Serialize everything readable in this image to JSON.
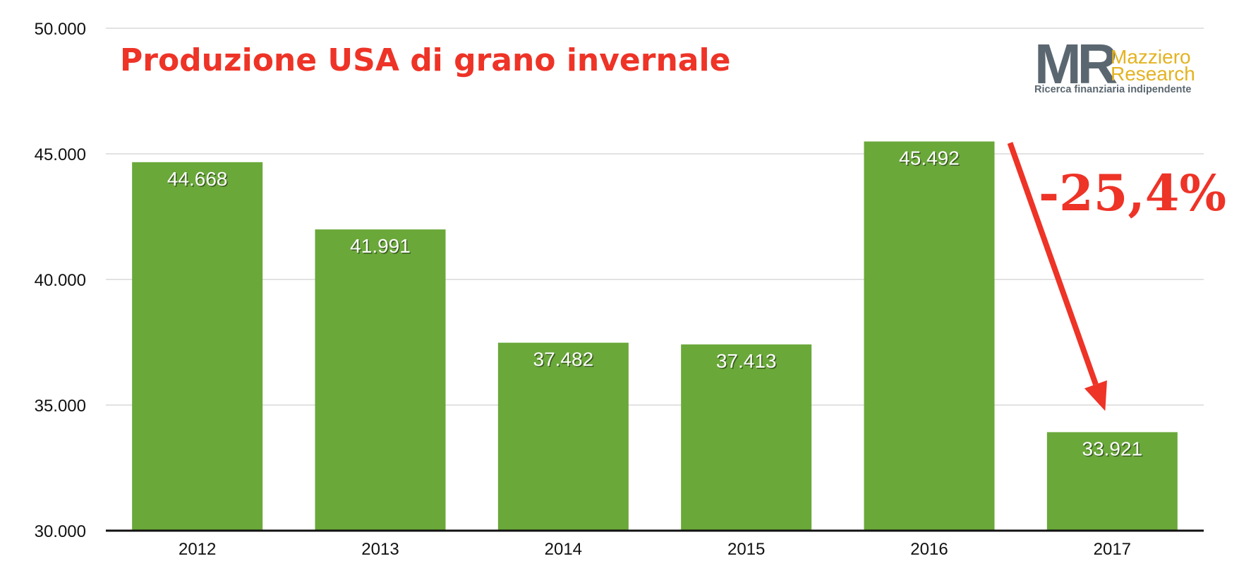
{
  "chart_data": {
    "type": "bar",
    "title": "Produzione USA di grano invernale",
    "categories": [
      "2012",
      "2013",
      "2014",
      "2015",
      "2016",
      "2017"
    ],
    "values": [
      44668,
      41991,
      37482,
      37413,
      45492,
      33921
    ],
    "value_labels": [
      "44.668",
      "41.991",
      "37.482",
      "37.413",
      "45.492",
      "33.921"
    ],
    "ylim": [
      30000,
      50000
    ],
    "yticks": [
      30000,
      35000,
      40000,
      45000,
      50000
    ],
    "ytick_labels": [
      "30.000",
      "35.000",
      "40.000",
      "45.000",
      "50.000"
    ],
    "xlabel": "",
    "ylabel": "",
    "grid": true,
    "legend": "none",
    "annotation": {
      "text": "-25,4%",
      "from_category": "2016",
      "to_category": "2017",
      "color": "#ee3327"
    }
  },
  "logo": {
    "mark": "MR",
    "line1": "Mazziero",
    "line2": "Research",
    "tagline": "Ricerca finanziaria indipendente"
  },
  "colors": {
    "bar": "#6aa83a",
    "title": "#ee3327",
    "grid": "#d9d9d9",
    "axis": "#111111",
    "logo_gray": "#5b6770",
    "logo_gold": "#e3b322"
  }
}
